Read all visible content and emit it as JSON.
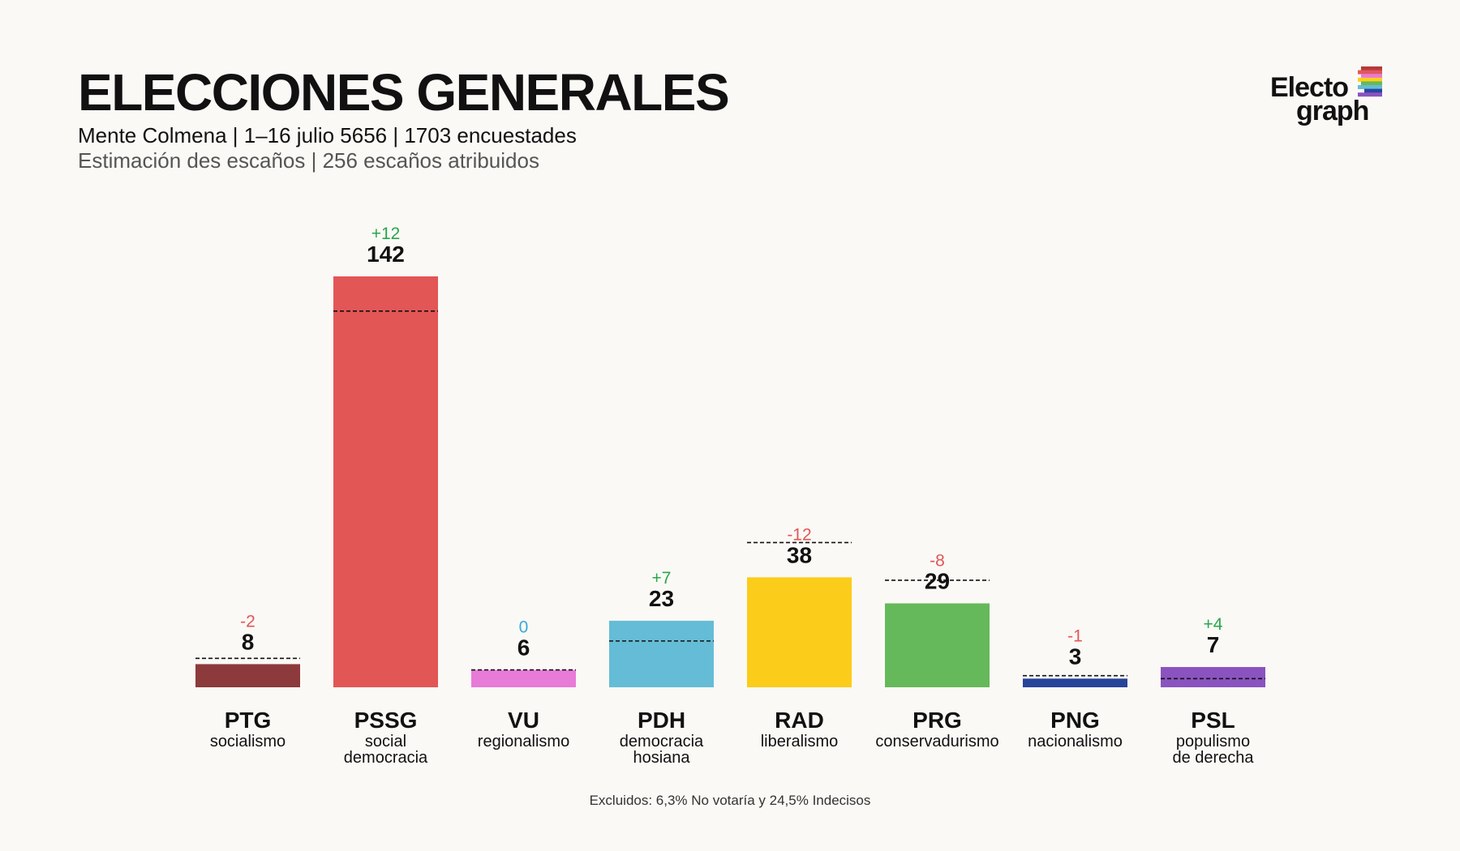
{
  "header": {
    "title": "ELECCIONES GENERALES",
    "subtitle": "Mente Colmena | 1–16 julio 5656 | 1703 encuestades",
    "subtitle2": "Estimación des escaños | 256 escaños atribuidos"
  },
  "logo": {
    "line1": "Electo",
    "line2": "graph",
    "mark_colors": [
      "#b5393b",
      "#e2585a",
      "#e87ad8",
      "#fcd01a",
      "#66b95a",
      "#65bcd6",
      "#2747a0",
      "#8a53c0"
    ]
  },
  "footnote": "Excluidos: 6,3% No votaría y 24,5% Indecisos",
  "chart_data": {
    "type": "bar",
    "ylim": [
      0,
      142
    ],
    "categories": [
      "PTG",
      "PSSG",
      "VU",
      "PDH",
      "RAD",
      "PRG",
      "PNG",
      "PSL"
    ],
    "descriptions": [
      [
        "socialismo"
      ],
      [
        "social",
        "democracia"
      ],
      [
        "regionalismo"
      ],
      [
        "democracia",
        "hosiana"
      ],
      [
        "liberalismo"
      ],
      [
        "conservadurismo"
      ],
      [
        "nacionalismo"
      ],
      [
        "populismo",
        "de derecha"
      ]
    ],
    "values": [
      8,
      142,
      6,
      23,
      38,
      29,
      3,
      7
    ],
    "changes": [
      "-2",
      "+12",
      "0",
      "+7",
      "-12",
      "-8",
      "-1",
      "+4"
    ],
    "previous": [
      10,
      130,
      6,
      16,
      50,
      37,
      4,
      3
    ],
    "colors": [
      "#8d3a3c",
      "#e25656",
      "#e87ad8",
      "#65bcd6",
      "#fccc1a",
      "#66b95a",
      "#27449a",
      "#8a53c0"
    ],
    "change_colors": {
      "up": "#2aa64a",
      "down": "#e25656",
      "same": "#3aa8da"
    }
  }
}
